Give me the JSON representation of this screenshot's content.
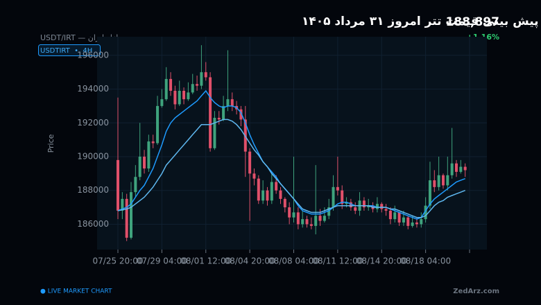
{
  "header": {
    "title": "پیش بینی قیمت تتر امروز ۳۱ مرداد ۱۴۰۵",
    "price": "188,897",
    "change": "+1.16%",
    "subtitle": "USDT/IRT — بازار ایران",
    "badge": "USDTIRT  •  4H",
    "live": "● LIVE MARKET CHART",
    "brand": "ZedArz.com"
  },
  "chart_data": {
    "type": "candlestick",
    "y_label": "Price",
    "up_color": "#3fa37d",
    "down_color": "#e0506a",
    "grid": true,
    "ylim": [
      184500,
      197100
    ],
    "yticks": [
      186000,
      188000,
      190000,
      192000,
      194000,
      196000
    ],
    "categories": [
      "07/25 20:00",
      null,
      null,
      null,
      null,
      null,
      null,
      null,
      null,
      null,
      "07/29 04:00",
      null,
      null,
      null,
      null,
      null,
      null,
      null,
      null,
      null,
      "08/01 12:00",
      null,
      null,
      null,
      null,
      null,
      null,
      null,
      null,
      null,
      "08/04 20:00",
      null,
      null,
      null,
      null,
      null,
      null,
      null,
      null,
      null,
      "08/08 04:00",
      null,
      null,
      null,
      null,
      null,
      null,
      null,
      null,
      null,
      "08/11 12:00",
      null,
      null,
      null,
      null,
      null,
      null,
      null,
      null,
      null,
      "08/14 20:00",
      null,
      null,
      null,
      null,
      null,
      null,
      null,
      null,
      null,
      "08/18 04:00",
      null,
      null,
      null,
      null,
      null,
      null,
      null,
      null,
      null,
      null
    ],
    "open": [
      189800,
      186800,
      187500,
      185200,
      187900,
      188800,
      190000,
      189300,
      190900,
      190800,
      193000,
      193400,
      194600,
      193900,
      193100,
      193900,
      193400,
      193800,
      194300,
      194200,
      195000,
      194700,
      190500,
      192300,
      192200,
      193000,
      193400,
      193000,
      192800,
      192200,
      190300,
      189000,
      188700,
      187400,
      188000,
      187400,
      188500,
      188000,
      187500,
      187000,
      186400,
      186700,
      186000,
      186300,
      186000,
      185900,
      186500,
      186200,
      186500,
      187000,
      188200,
      188000,
      187200,
      187300,
      187000,
      186800,
      187400,
      187000,
      187100,
      186900,
      187200,
      186900,
      186800,
      186300,
      186700,
      186100,
      186400,
      185900,
      186100,
      186000,
      186300,
      187100,
      188600,
      188200,
      188900,
      188300,
      188900,
      189600,
      189100,
      189400,
      null
    ],
    "high": [
      193500,
      187900,
      187800,
      188500,
      189500,
      192000,
      190400,
      191300,
      191300,
      193600,
      194000,
      195300,
      195000,
      194200,
      194500,
      194100,
      194400,
      194900,
      194800,
      196600,
      195600,
      195000,
      192700,
      192700,
      193600,
      196300,
      193800,
      193300,
      193000,
      193000,
      190500,
      189300,
      188900,
      188600,
      188200,
      189000,
      188900,
      188200,
      187600,
      187300,
      190000,
      187000,
      186800,
      186500,
      186400,
      189500,
      186900,
      187000,
      187500,
      188900,
      190000,
      188300,
      187600,
      187500,
      187300,
      187900,
      187600,
      187500,
      187300,
      187600,
      187300,
      187200,
      187000,
      187100,
      186700,
      186800,
      186500,
      186500,
      186400,
      186700,
      187600,
      189700,
      189200,
      190000,
      189000,
      190000,
      191700,
      189800,
      189800,
      189600,
      null
    ],
    "low": [
      186300,
      186300,
      185000,
      185100,
      187600,
      188600,
      189000,
      189100,
      190500,
      190700,
      192900,
      193300,
      193600,
      192800,
      193000,
      193100,
      193300,
      193700,
      193900,
      194000,
      194500,
      190300,
      190400,
      191900,
      192100,
      192700,
      192700,
      192500,
      191800,
      188800,
      186200,
      188300,
      187200,
      187200,
      187100,
      187200,
      187800,
      187200,
      186700,
      186000,
      186100,
      185700,
      185800,
      185800,
      185700,
      185400,
      185900,
      186100,
      186300,
      186800,
      187700,
      186900,
      187000,
      186800,
      186600,
      186500,
      186800,
      186800,
      186700,
      186700,
      186700,
      186500,
      186000,
      186100,
      185900,
      185900,
      185700,
      185800,
      185800,
      185800,
      186100,
      186900,
      187900,
      188000,
      188100,
      188000,
      188700,
      188800,
      189000,
      188800,
      null
    ],
    "close": [
      186800,
      187500,
      185200,
      187900,
      188800,
      190000,
      189300,
      190900,
      190800,
      193000,
      193400,
      194600,
      193900,
      193100,
      193900,
      193400,
      193800,
      194300,
      194200,
      195000,
      194700,
      190500,
      192300,
      192200,
      193000,
      193400,
      193000,
      192800,
      192200,
      190300,
      189000,
      188700,
      187400,
      188000,
      187400,
      188500,
      188000,
      187500,
      187000,
      186400,
      186700,
      186000,
      186300,
      186000,
      185900,
      186500,
      186200,
      186500,
      187000,
      188200,
      188000,
      187200,
      187300,
      187000,
      186800,
      187400,
      187000,
      187100,
      186900,
      187200,
      186900,
      186800,
      186300,
      186700,
      186100,
      186400,
      185900,
      186100,
      186000,
      186300,
      187100,
      188600,
      188200,
      188900,
      188300,
      188900,
      189600,
      189100,
      189400,
      189200,
      null
    ],
    "series": [
      {
        "color": "#1e9bff",
        "values": [
          186800,
          186900,
          187000,
          187200,
          187600,
          188000,
          188300,
          188800,
          189300,
          190000,
          190700,
          191500,
          192000,
          192300,
          192500,
          192700,
          192900,
          193100,
          193300,
          193600,
          193900,
          193500,
          193200,
          193000,
          192900,
          193000,
          193000,
          192900,
          192600,
          192000,
          191300,
          190700,
          190200,
          189700,
          189400,
          189100,
          188800,
          188400,
          188100,
          187800,
          187500,
          187100,
          186800,
          186700,
          186600,
          186600,
          186600,
          186700,
          186800,
          187000,
          187200,
          187300,
          187300,
          187200,
          187100,
          187100,
          187100,
          187100,
          187100,
          187000,
          187000,
          187000,
          186900,
          186800,
          186700,
          186600,
          186500,
          186400,
          186300,
          186400,
          186800,
          187200,
          187500,
          187700,
          187900,
          188100,
          188300,
          188500,
          188600,
          188700,
          null
        ]
      },
      {
        "color": "#5fb8f0",
        "values": [
          186800,
          186850,
          186900,
          187000,
          187200,
          187400,
          187600,
          187900,
          188200,
          188600,
          189000,
          189500,
          189800,
          190100,
          190400,
          190700,
          191000,
          191300,
          191600,
          191900,
          191900,
          191900,
          192000,
          192100,
          192200,
          192200,
          192100,
          191900,
          191600,
          191200,
          190800,
          190400,
          190100,
          189700,
          189400,
          189000,
          188700,
          188400,
          188100,
          187800,
          187500,
          187200,
          186900,
          186800,
          186700,
          186700,
          186700,
          186800,
          186900,
          187000,
          187100,
          187100,
          187100,
          187100,
          187100,
          187100,
          187100,
          187100,
          187000,
          187000,
          187000,
          187000,
          186900,
          186900,
          186800,
          186700,
          186600,
          186500,
          186400,
          186400,
          186500,
          186800,
          187100,
          187300,
          187400,
          187600,
          187700,
          187800,
          187900,
          188000,
          null
        ]
      }
    ]
  }
}
